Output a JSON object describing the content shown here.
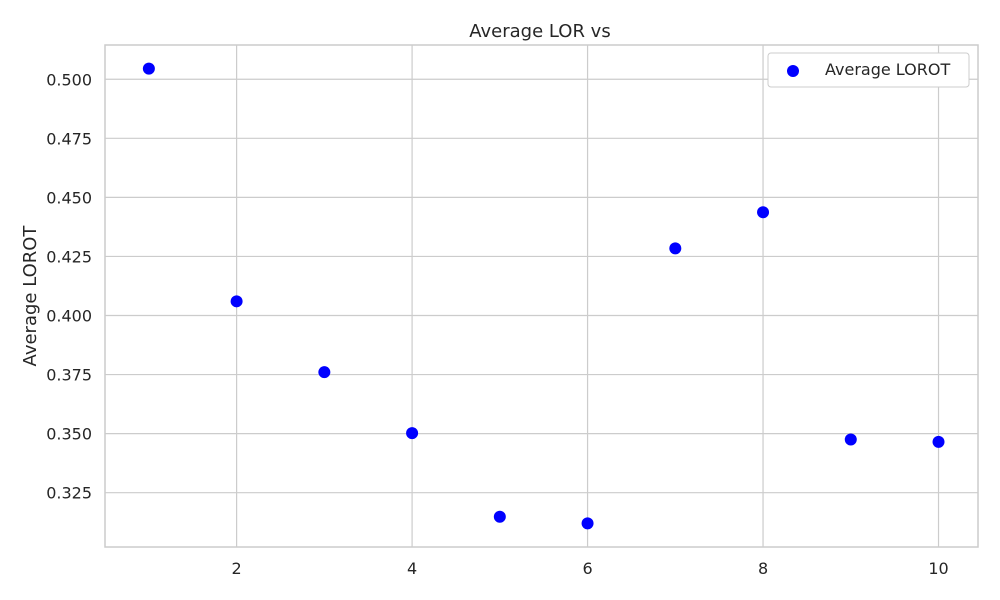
{
  "chart_data": {
    "type": "scatter",
    "title": "Average LOR vs",
    "xlabel": "",
    "ylabel": "Average LOROT",
    "xlim": [
      0.5,
      10.45
    ],
    "ylim": [
      0.302,
      0.5145
    ],
    "xticks": [
      2,
      4,
      6,
      8,
      10
    ],
    "yticks": [
      0.325,
      0.35,
      0.375,
      0.4,
      0.425,
      0.45,
      0.475,
      0.5
    ],
    "xtick_labels": [
      "2",
      "4",
      "6",
      "8",
      "10"
    ],
    "ytick_labels": [
      "0.325",
      "0.350",
      "0.375",
      "0.400",
      "0.425",
      "0.450",
      "0.475",
      "0.500"
    ],
    "grid": true,
    "legend_position": "top-right",
    "series": [
      {
        "name": "Average LOROT",
        "color": "#0000ff",
        "x": [
          1,
          2,
          3,
          4,
          5,
          6,
          7,
          8,
          9,
          10
        ],
        "y": [
          0.5045,
          0.406,
          0.376,
          0.3502,
          0.3148,
          0.312,
          0.4284,
          0.4437,
          0.3475,
          0.3465
        ]
      }
    ]
  }
}
